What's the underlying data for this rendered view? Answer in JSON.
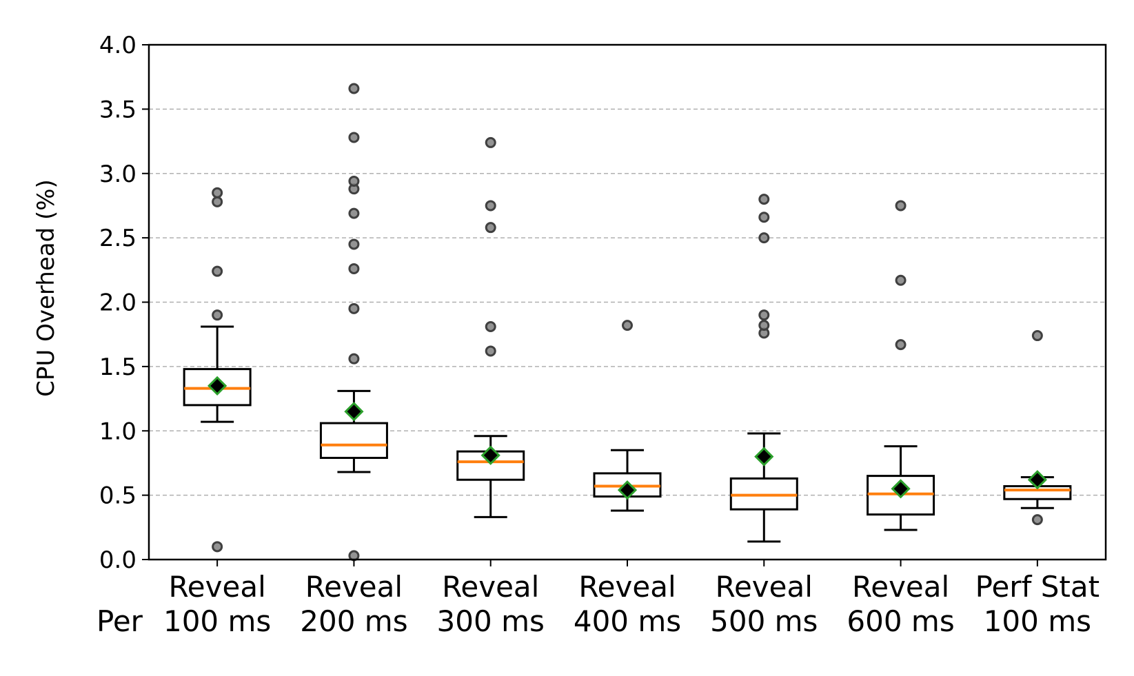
{
  "chart_data": {
    "type": "box",
    "ylabel": "CPU Overhead (%)",
    "ylim": [
      0,
      4.0
    ],
    "yticks": [
      "0.0",
      "0.5",
      "1.0",
      "1.5",
      "2.0",
      "2.5",
      "3.0",
      "3.5",
      "4.0"
    ],
    "grid": "horizontal dashed",
    "colors": {
      "median": "#ff7f0e",
      "mean_fill": "#000000",
      "mean_edge": "#2ca02c",
      "outlier": "#808080",
      "outlier_edge": "#404040",
      "grid": "#b0b0b0",
      "box_edge": "#000000"
    },
    "x_prefix_label": "Per",
    "categories": [
      {
        "line1": "Reveal",
        "line2": "100 ms",
        "whisker_low": 1.07,
        "q1": 1.2,
        "median": 1.33,
        "q3": 1.48,
        "whisker_high": 1.81,
        "mean": 1.35,
        "outliers": [
          0.1,
          1.9,
          2.24,
          2.78,
          2.85
        ]
      },
      {
        "line1": "Reveal",
        "line2": "200 ms",
        "whisker_low": 0.68,
        "q1": 0.79,
        "median": 0.89,
        "q3": 1.06,
        "whisker_high": 1.31,
        "mean": 1.15,
        "outliers": [
          0.03,
          1.56,
          1.95,
          2.26,
          2.45,
          2.69,
          2.88,
          2.94,
          3.28,
          3.66
        ]
      },
      {
        "line1": "Reveal",
        "line2": "300 ms",
        "whisker_low": 0.33,
        "q1": 0.62,
        "median": 0.76,
        "q3": 0.84,
        "whisker_high": 0.96,
        "mean": 0.81,
        "outliers": [
          1.62,
          1.81,
          2.58,
          2.75,
          3.24
        ]
      },
      {
        "line1": "Reveal",
        "line2": "400 ms",
        "whisker_low": 0.38,
        "q1": 0.49,
        "median": 0.57,
        "q3": 0.67,
        "whisker_high": 0.85,
        "mean": 0.54,
        "outliers": [
          1.82
        ]
      },
      {
        "line1": "Reveal",
        "line2": "500 ms",
        "whisker_low": 0.14,
        "q1": 0.39,
        "median": 0.5,
        "q3": 0.63,
        "whisker_high": 0.98,
        "mean": 0.8,
        "outliers": [
          1.76,
          1.82,
          1.9,
          2.5,
          2.66,
          2.8
        ]
      },
      {
        "line1": "Reveal",
        "line2": "600 ms",
        "whisker_low": 0.23,
        "q1": 0.35,
        "median": 0.51,
        "q3": 0.65,
        "whisker_high": 0.88,
        "mean": 0.55,
        "outliers": [
          1.67,
          2.17,
          2.75
        ]
      },
      {
        "line1": "Perf Stat",
        "line2": "100 ms",
        "whisker_low": 0.4,
        "q1": 0.47,
        "median": 0.54,
        "q3": 0.57,
        "whisker_high": 0.64,
        "mean": 0.62,
        "outliers": [
          0.31,
          1.74
        ]
      }
    ]
  }
}
